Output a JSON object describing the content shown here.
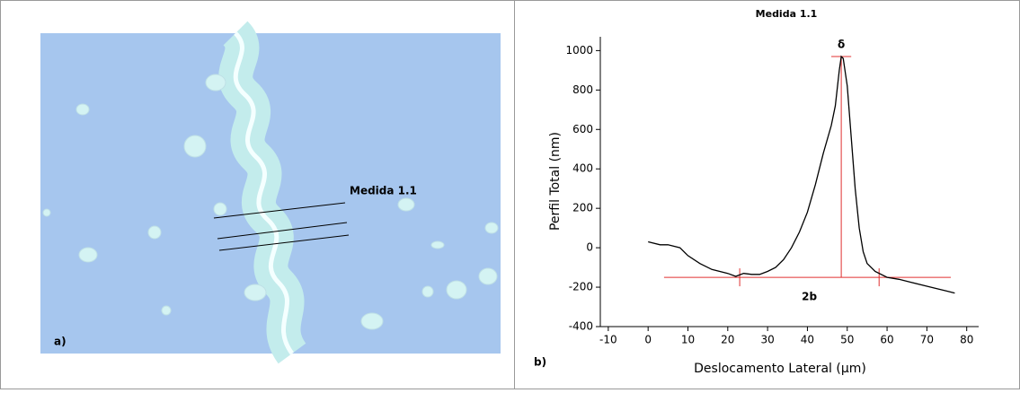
{
  "image_panel": {
    "label": "a)",
    "annotation": "Medida 1.1"
  },
  "chart_data": {
    "type": "line",
    "title": "Medida 1.1",
    "panel_label": "b)",
    "x_label": "Deslocamento Lateral (µm)",
    "y_label": "Perfil Total  (nm)",
    "xlim": [
      -12,
      83
    ],
    "ylim": [
      -400,
      1070
    ],
    "xticks": [
      -10,
      0,
      10,
      20,
      30,
      40,
      50,
      60,
      70,
      80
    ],
    "yticks": [
      -400,
      -200,
      0,
      200,
      400,
      600,
      800,
      1000
    ],
    "series": [
      {
        "name": "Medida 1.1",
        "color": "#000000",
        "x": [
          0,
          3,
          5,
          8,
          10,
          13,
          16,
          20,
          22,
          24,
          26,
          28,
          30,
          32,
          34,
          36,
          38,
          40,
          42,
          44,
          46,
          47,
          48,
          48.5,
          49,
          50,
          51,
          52,
          53,
          54,
          55,
          57,
          60,
          63,
          66,
          70,
          73,
          75,
          77
        ],
        "values": [
          30,
          15,
          15,
          0,
          -40,
          -80,
          -110,
          -130,
          -145,
          -130,
          -135,
          -135,
          -120,
          -100,
          -60,
          0,
          80,
          180,
          320,
          480,
          620,
          720,
          900,
          970,
          960,
          820,
          560,
          300,
          100,
          -20,
          -80,
          -120,
          -150,
          -160,
          -175,
          -195,
          -210,
          -220,
          -230
        ]
      }
    ],
    "reference_color": "#e03030",
    "baseline": {
      "y": -150,
      "x": [
        4,
        76
      ],
      "label": "2b",
      "ends": [
        23,
        58
      ]
    },
    "peak": {
      "x": 48.5,
      "y": 970,
      "label": "δ",
      "width": [
        46,
        51
      ]
    }
  }
}
